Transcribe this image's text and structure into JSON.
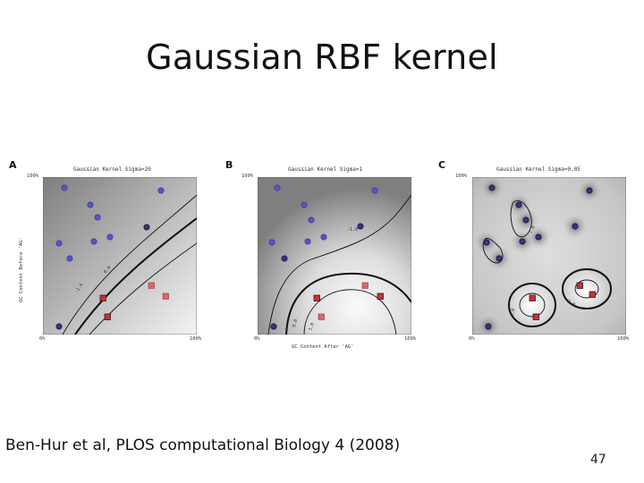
{
  "slide": {
    "title": "Gaussian RBF kernel",
    "citation": "Ben-Hur et al, PLOS computational Biology 4 (2008)",
    "page_number": "47"
  },
  "figure": {
    "panels": [
      {
        "letter": "A",
        "title": "Gaussian Kernel Sigma=20",
        "y_tick_top": "100%",
        "x_tick_left": "0%",
        "x_tick_right": "100%",
        "ylabel": "GC Content Before 'AG'",
        "xlabel": "",
        "contour_labels": [
          "-1.0",
          "0.0"
        ]
      },
      {
        "letter": "B",
        "title": "Gaussian Kernel Sigma=1",
        "y_tick_top": "100%",
        "x_tick_left": "0%",
        "x_tick_right": "100%",
        "ylabel": "",
        "xlabel": "GC Content After 'AG'",
        "contour_labels": [
          "-1.0",
          "0.0",
          "1.0"
        ]
      },
      {
        "letter": "C",
        "title": "Gaussian Kernel Sigma=0.05",
        "y_tick_top": "100%",
        "x_tick_left": "0%",
        "x_tick_right": "100%",
        "ylabel": "",
        "xlabel": "",
        "contour_labels": [
          "-1.0",
          "0.0",
          "0.0"
        ]
      }
    ],
    "colors": {
      "negative": "#5555cc",
      "positive": "#dd5555",
      "contour": "#111111"
    }
  }
}
